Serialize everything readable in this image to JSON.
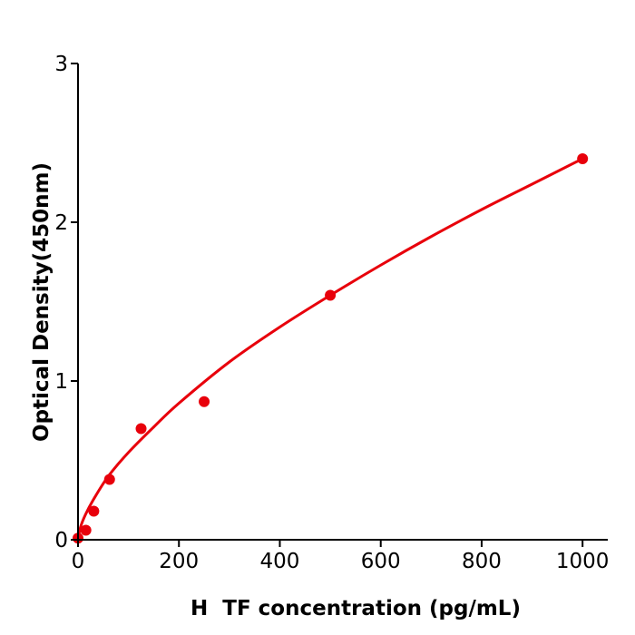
{
  "chart_data": {
    "type": "scatter",
    "title": "",
    "xlabel": "H  TF concentration (pg/mL)",
    "ylabel": "Optical Density(450nm)",
    "xlim": [
      0,
      1050
    ],
    "ylim": [
      0,
      3
    ],
    "xticks": [
      0,
      200,
      400,
      600,
      800,
      1000
    ],
    "yticks": [
      0,
      1,
      2,
      3
    ],
    "grid": false,
    "color": "#e8000b",
    "points": {
      "x": [
        0,
        15.6,
        31.25,
        62.5,
        125,
        250,
        500,
        1000
      ],
      "y": [
        0.01,
        0.06,
        0.18,
        0.38,
        0.7,
        0.87,
        1.54,
        2.4
      ]
    },
    "fit_curve": {
      "x": [
        0,
        5,
        15,
        30,
        60,
        100,
        150,
        200,
        300,
        400,
        500,
        600,
        700,
        800,
        900,
        1000
      ],
      "y": [
        0,
        0.08,
        0.16,
        0.25,
        0.4,
        0.55,
        0.71,
        0.86,
        1.12,
        1.34,
        1.54,
        1.73,
        1.91,
        2.08,
        2.24,
        2.4
      ]
    }
  }
}
